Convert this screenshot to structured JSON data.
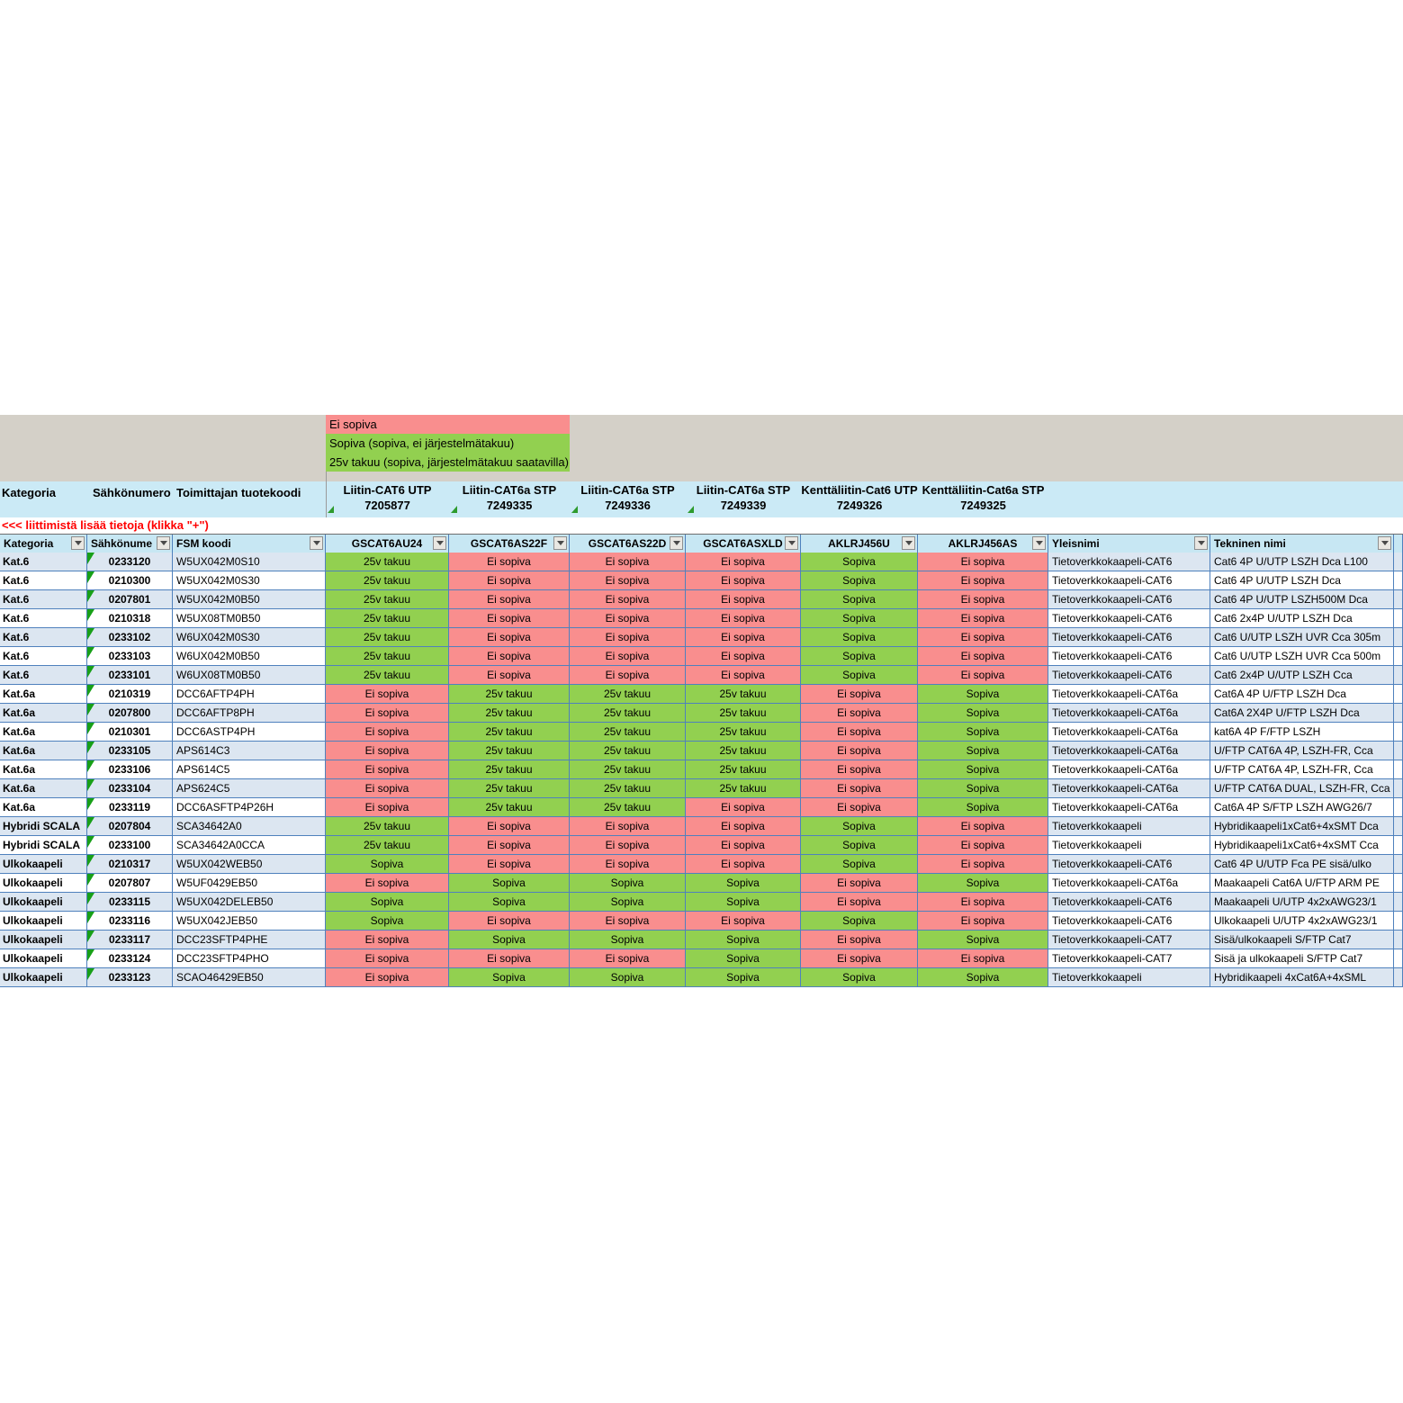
{
  "legend": {
    "items": [
      {
        "label": "Ei sopiva",
        "color": "#F98E8E"
      },
      {
        "label": "Sopiva (sopiva, ei järjestelmätakuu)",
        "color": "#92D050"
      },
      {
        "label": "25v takuu (sopiva, järjestelmätakuu saatavilla)",
        "color": "#92D050"
      }
    ]
  },
  "group_header": {
    "left_labels": [
      "Kategoria",
      "Sähkönumero",
      "Toimittajan tuotekoodi"
    ],
    "connectors": [
      {
        "line1": "Liitin-CAT6 UTP",
        "line2": "7205877",
        "marker": true
      },
      {
        "line1": "Liitin-CAT6a STP",
        "line2": "7249335",
        "marker": true
      },
      {
        "line1": "Liitin-CAT6a STP",
        "line2": "7249336",
        "marker": true
      },
      {
        "line1": "Liitin-CAT6a STP",
        "line2": "7249339",
        "marker": true
      },
      {
        "line1": "Kenttäliitin-Cat6 UTP",
        "line2": "7249326",
        "marker": false
      },
      {
        "line1": "Kenttäliitin-Cat6a STP",
        "line2": "7249325",
        "marker": false
      }
    ]
  },
  "info_link": "<<<  liittimistä lisää tietoja (klikka \"+\")",
  "filter_row": {
    "columns": [
      "Kategoria",
      "Sähkönume",
      "FSM koodi",
      "GSCAT6AU24",
      "GSCAT6AS22F",
      "GSCAT6AS22D",
      "GSCAT6ASXLD",
      "AKLRJ456U",
      "AKLRJ456AS",
      "Yleisnimi",
      "Tekninen nimi"
    ]
  },
  "status_colors": {
    "Ei sopiva": "#F98E8E",
    "Sopiva": "#92D050",
    "25v takuu": "#92D050"
  },
  "table": {
    "rows": [
      {
        "kategoria": "Kat.6",
        "sahkonumero": "0233120",
        "fsm": "W5UX042M0S10",
        "values": [
          "25v takuu",
          "Ei sopiva",
          "Ei sopiva",
          "Ei sopiva",
          "Sopiva",
          "Ei sopiva"
        ],
        "yleisnimi": "Tietoverkkokaapeli-CAT6",
        "tekninen": "Cat6 4P U/UTP LSZH Dca L100"
      },
      {
        "kategoria": "Kat.6",
        "sahkonumero": "0210300",
        "fsm": "W5UX042M0S30",
        "values": [
          "25v takuu",
          "Ei sopiva",
          "Ei sopiva",
          "Ei sopiva",
          "Sopiva",
          "Ei sopiva"
        ],
        "yleisnimi": "Tietoverkkokaapeli-CAT6",
        "tekninen": "Cat6 4P U/UTP LSZH Dca"
      },
      {
        "kategoria": "Kat.6",
        "sahkonumero": "0207801",
        "fsm": "W5UX042M0B50",
        "values": [
          "25v takuu",
          "Ei sopiva",
          "Ei sopiva",
          "Ei sopiva",
          "Sopiva",
          "Ei sopiva"
        ],
        "yleisnimi": "Tietoverkkokaapeli-CAT6",
        "tekninen": "Cat6 4P U/UTP LSZH500M Dca"
      },
      {
        "kategoria": "Kat.6",
        "sahkonumero": "0210318",
        "fsm": "W5UX08TM0B50",
        "values": [
          "25v takuu",
          "Ei sopiva",
          "Ei sopiva",
          "Ei sopiva",
          "Sopiva",
          "Ei sopiva"
        ],
        "yleisnimi": "Tietoverkkokaapeli-CAT6",
        "tekninen": "Cat6 2x4P U/UTP LSZH Dca"
      },
      {
        "kategoria": "Kat.6",
        "sahkonumero": "0233102",
        "fsm": "W6UX042M0S30",
        "values": [
          "25v takuu",
          "Ei sopiva",
          "Ei sopiva",
          "Ei sopiva",
          "Sopiva",
          "Ei sopiva"
        ],
        "yleisnimi": "Tietoverkkokaapeli-CAT6",
        "tekninen": "Cat6 U/UTP LSZH UVR Cca 305m"
      },
      {
        "kategoria": "Kat.6",
        "sahkonumero": "0233103",
        "fsm": "W6UX042M0B50",
        "values": [
          "25v takuu",
          "Ei sopiva",
          "Ei sopiva",
          "Ei sopiva",
          "Sopiva",
          "Ei sopiva"
        ],
        "yleisnimi": "Tietoverkkokaapeli-CAT6",
        "tekninen": "Cat6 U/UTP LSZH UVR Cca 500m"
      },
      {
        "kategoria": "Kat.6",
        "sahkonumero": "0233101",
        "fsm": "W6UX08TM0B50",
        "values": [
          "25v takuu",
          "Ei sopiva",
          "Ei sopiva",
          "Ei sopiva",
          "Sopiva",
          "Ei sopiva"
        ],
        "yleisnimi": "Tietoverkkokaapeli-CAT6",
        "tekninen": "Cat6 2x4P U/UTP LSZH Cca"
      },
      {
        "kategoria": "Kat.6a",
        "sahkonumero": "0210319",
        "fsm": "DCC6AFTP4PH",
        "values": [
          "Ei sopiva",
          "25v takuu",
          "25v takuu",
          "25v takuu",
          "Ei sopiva",
          "Sopiva"
        ],
        "yleisnimi": "Tietoverkkokaapeli-CAT6a",
        "tekninen": "Cat6A 4P U/FTP LSZH Dca"
      },
      {
        "kategoria": "Kat.6a",
        "sahkonumero": "0207800",
        "fsm": "DCC6AFTP8PH",
        "values": [
          "Ei sopiva",
          "25v takuu",
          "25v takuu",
          "25v takuu",
          "Ei sopiva",
          "Sopiva"
        ],
        "yleisnimi": "Tietoverkkokaapeli-CAT6a",
        "tekninen": "Cat6A 2X4P U/FTP LSZH Dca"
      },
      {
        "kategoria": "Kat.6a",
        "sahkonumero": "0210301",
        "fsm": "DCC6ASTP4PH",
        "values": [
          "Ei sopiva",
          "25v takuu",
          "25v takuu",
          "25v takuu",
          "Ei sopiva",
          "Sopiva"
        ],
        "yleisnimi": "Tietoverkkokaapeli-CAT6a",
        "tekninen": "kat6A 4P F/FTP LSZH"
      },
      {
        "kategoria": "Kat.6a",
        "sahkonumero": "0233105",
        "fsm": "APS614C3",
        "values": [
          "Ei sopiva",
          "25v takuu",
          "25v takuu",
          "25v takuu",
          "Ei sopiva",
          "Sopiva"
        ],
        "yleisnimi": "Tietoverkkokaapeli-CAT6a",
        "tekninen": "U/FTP CAT6A 4P, LSZH-FR, Cca"
      },
      {
        "kategoria": "Kat.6a",
        "sahkonumero": "0233106",
        "fsm": "APS614C5",
        "values": [
          "Ei sopiva",
          "25v takuu",
          "25v takuu",
          "25v takuu",
          "Ei sopiva",
          "Sopiva"
        ],
        "yleisnimi": "Tietoverkkokaapeli-CAT6a",
        "tekninen": "U/FTP CAT6A 4P, LSZH-FR, Cca"
      },
      {
        "kategoria": "Kat.6a",
        "sahkonumero": "0233104",
        "fsm": "APS624C5",
        "values": [
          "Ei sopiva",
          "25v takuu",
          "25v takuu",
          "25v takuu",
          "Ei sopiva",
          "Sopiva"
        ],
        "yleisnimi": "Tietoverkkokaapeli-CAT6a",
        "tekninen": "U/FTP CAT6A DUAL, LSZH-FR, Cca"
      },
      {
        "kategoria": "Kat.6a",
        "sahkonumero": "0233119",
        "fsm": "DCC6ASFTP4P26H",
        "values": [
          "Ei sopiva",
          "25v takuu",
          "25v takuu",
          "Ei sopiva",
          "Ei sopiva",
          "Sopiva"
        ],
        "yleisnimi": "Tietoverkkokaapeli-CAT6a",
        "tekninen": "Cat6A 4P S/FTP LSZH AWG26/7"
      },
      {
        "kategoria": "Hybridi SCALA",
        "sahkonumero": "0207804",
        "fsm": "SCA34642A0",
        "values": [
          "25v takuu",
          "Ei sopiva",
          "Ei sopiva",
          "Ei sopiva",
          "Sopiva",
          "Ei sopiva"
        ],
        "yleisnimi": "Tietoverkkokaapeli",
        "tekninen": "Hybridikaapeli1xCat6+4xSMT Dca"
      },
      {
        "kategoria": "Hybridi SCALA",
        "sahkonumero": "0233100",
        "fsm": "SCA34642A0CCA",
        "values": [
          "25v takuu",
          "Ei sopiva",
          "Ei sopiva",
          "Ei sopiva",
          "Sopiva",
          "Ei sopiva"
        ],
        "yleisnimi": "Tietoverkkokaapeli",
        "tekninen": "Hybridikaapeli1xCat6+4xSMT Cca"
      },
      {
        "kategoria": "Ulkokaapeli",
        "sahkonumero": "0210317",
        "fsm": "W5UX042WEB50",
        "values": [
          "Sopiva",
          "Ei sopiva",
          "Ei sopiva",
          "Ei sopiva",
          "Sopiva",
          "Ei sopiva"
        ],
        "yleisnimi": "Tietoverkkokaapeli-CAT6",
        "tekninen": "Cat6 4P U/UTP Fca PE sisä/ulko"
      },
      {
        "kategoria": "Ulkokaapeli",
        "sahkonumero": "0207807",
        "fsm": "W5UF0429EB50",
        "values": [
          "Ei sopiva",
          "Sopiva",
          "Sopiva",
          "Sopiva",
          "Ei sopiva",
          "Sopiva"
        ],
        "yleisnimi": "Tietoverkkokaapeli-CAT6a",
        "tekninen": "Maakaapeli Cat6A U/FTP ARM PE"
      },
      {
        "kategoria": "Ulkokaapeli",
        "sahkonumero": "0233115",
        "fsm": "W5UX042DELEB50",
        "values": [
          "Sopiva",
          "Sopiva",
          "Sopiva",
          "Sopiva",
          "Ei sopiva",
          "Ei sopiva"
        ],
        "yleisnimi": "Tietoverkkokaapeli-CAT6",
        "tekninen": "Maakaapeli U/UTP 4x2xAWG23/1"
      },
      {
        "kategoria": "Ulkokaapeli",
        "sahkonumero": "0233116",
        "fsm": "W5UX042JEB50",
        "values": [
          "Sopiva",
          "Ei sopiva",
          "Ei sopiva",
          "Ei sopiva",
          "Sopiva",
          "Ei sopiva"
        ],
        "yleisnimi": "Tietoverkkokaapeli-CAT6",
        "tekninen": "Ulkokaapeli U/UTP 4x2xAWG23/1"
      },
      {
        "kategoria": "Ulkokaapeli",
        "sahkonumero": "0233117",
        "fsm": "DCC23SFTP4PHE",
        "values": [
          "Ei sopiva",
          "Sopiva",
          "Sopiva",
          "Sopiva",
          "Ei sopiva",
          "Sopiva"
        ],
        "yleisnimi": "Tietoverkkokaapeli-CAT7",
        "tekninen": "Sisä/ulkokaapeli S/FTP Cat7"
      },
      {
        "kategoria": "Ulkokaapeli",
        "sahkonumero": "0233124",
        "fsm": "DCC23SFTP4PHO",
        "values": [
          "Ei sopiva",
          "Ei sopiva",
          "Ei sopiva",
          "Sopiva",
          "Ei sopiva",
          "Ei sopiva"
        ],
        "yleisnimi": "Tietoverkkokaapeli-CAT7",
        "tekninen": "Sisä ja ulkokaapeli S/FTP Cat7"
      },
      {
        "kategoria": "Ulkokaapeli",
        "sahkonumero": "0233123",
        "fsm": "SCAO46429EB50",
        "values": [
          "Ei sopiva",
          "Sopiva",
          "Sopiva",
          "Sopiva",
          "Sopiva",
          "Sopiva"
        ],
        "yleisnimi": "Tietoverkkokaapeli",
        "tekninen": "Hybridikaapeli 4xCat6A+4xSML"
      }
    ]
  }
}
